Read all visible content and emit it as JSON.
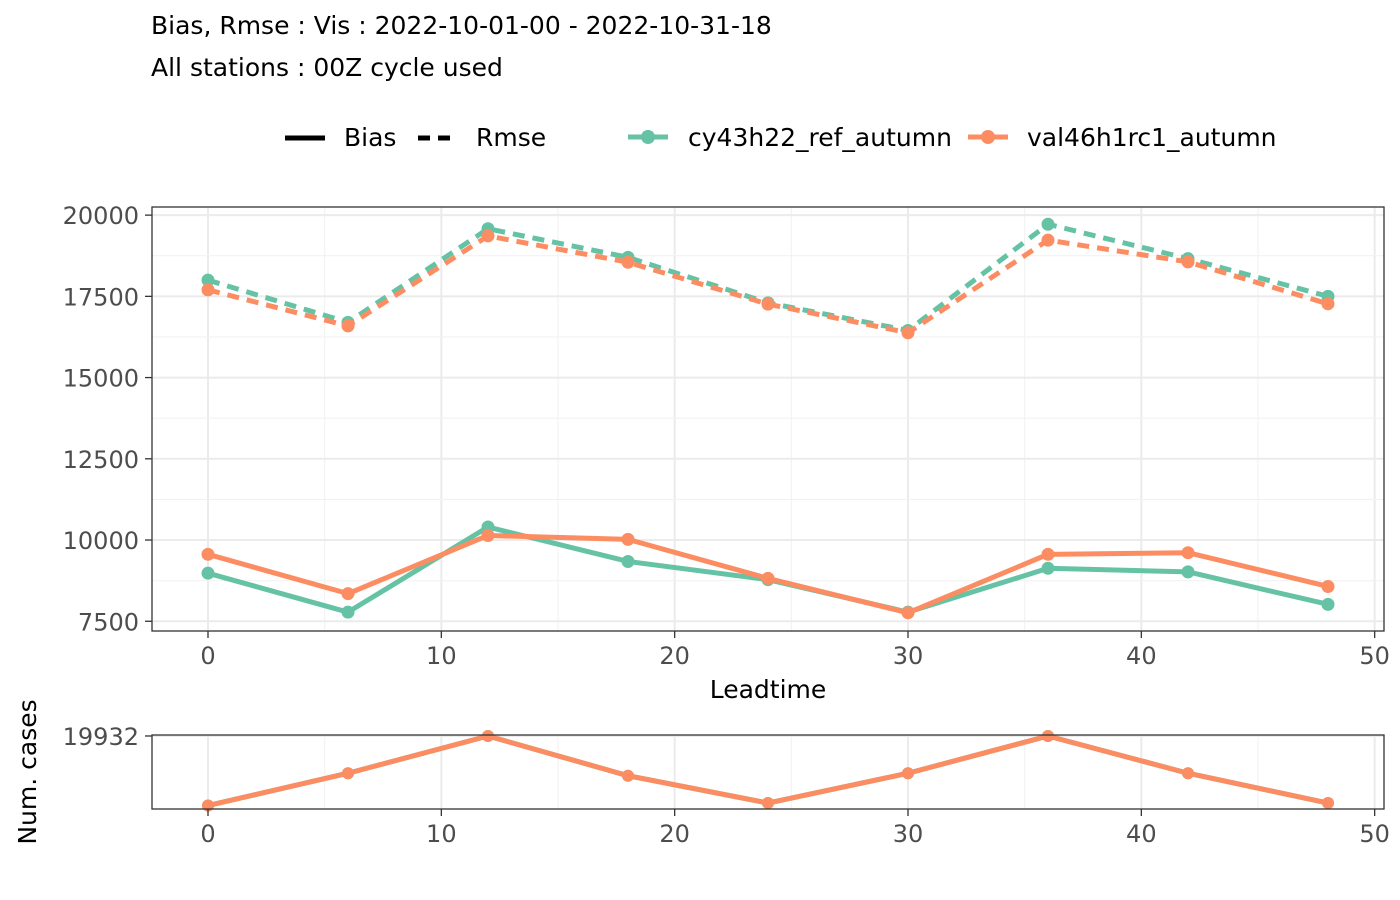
{
  "chart_data": [
    {
      "type": "line",
      "title": "Bias, Rmse : Vis : 2022-10-01-00 - 2022-10-31-18",
      "subtitle": "All stations : 00Z cycle used",
      "xlabel": "Leadtime",
      "ylabel": "",
      "x": [
        0,
        6,
        12,
        18,
        24,
        30,
        36,
        42,
        48
      ],
      "xlim": [
        -2.4,
        50.4
      ],
      "ylim": [
        7200,
        20250
      ],
      "x_ticks": [
        0,
        10,
        20,
        30,
        40,
        50
      ],
      "y_ticks": [
        7500,
        10000,
        12500,
        15000,
        17500,
        20000
      ],
      "grid": true,
      "legend_position": "top",
      "linetype_legend": [
        {
          "label": "Bias",
          "dash": "solid"
        },
        {
          "label": "Rmse",
          "dash": "dashed"
        }
      ],
      "series": [
        {
          "name": "cy43h22_ref_autumn",
          "score": "Bias",
          "color": "#66c2a5",
          "dash": "solid",
          "values": [
            8980,
            7780,
            10400,
            9340,
            8780,
            7780,
            9130,
            9020,
            8020
          ]
        },
        {
          "name": "val46h1rc1_autumn",
          "score": "Bias",
          "color": "#fc8d62",
          "dash": "solid",
          "values": [
            9560,
            8350,
            10140,
            10020,
            8820,
            7760,
            9560,
            9610,
            8570
          ]
        },
        {
          "name": "cy43h22_ref_autumn",
          "score": "Rmse",
          "color": "#66c2a5",
          "dash": "dashed",
          "values": [
            18000,
            16700,
            19580,
            18700,
            17300,
            16450,
            19720,
            18660,
            17500
          ]
        },
        {
          "name": "val46h1rc1_autumn",
          "score": "Rmse",
          "color": "#fc8d62",
          "dash": "dashed",
          "values": [
            17700,
            16590,
            19360,
            18550,
            17260,
            16380,
            19230,
            18560,
            17270
          ]
        }
      ]
    },
    {
      "type": "line",
      "xlabel": "",
      "ylabel": "Num. cases",
      "x": [
        0,
        6,
        12,
        18,
        24,
        30,
        36,
        42,
        48
      ],
      "xlim": [
        -2.4,
        50.4
      ],
      "ylim": [
        19902.6,
        19932.4
      ],
      "x_ticks": [
        0,
        10,
        20,
        30,
        40,
        50
      ],
      "y_ticks": [
        19932
      ],
      "grid": true,
      "series": [
        {
          "name": "cy43h22_ref_autumn",
          "color": "#66c2a5",
          "values": [
            19904,
            19917,
            19932,
            19916,
            19905,
            19917,
            19932,
            19917,
            19905
          ]
        },
        {
          "name": "val46h1rc1_autumn",
          "color": "#fc8d62",
          "values": [
            19904,
            19917,
            19932,
            19916,
            19905,
            19917,
            19932,
            19917,
            19905
          ]
        }
      ]
    }
  ]
}
